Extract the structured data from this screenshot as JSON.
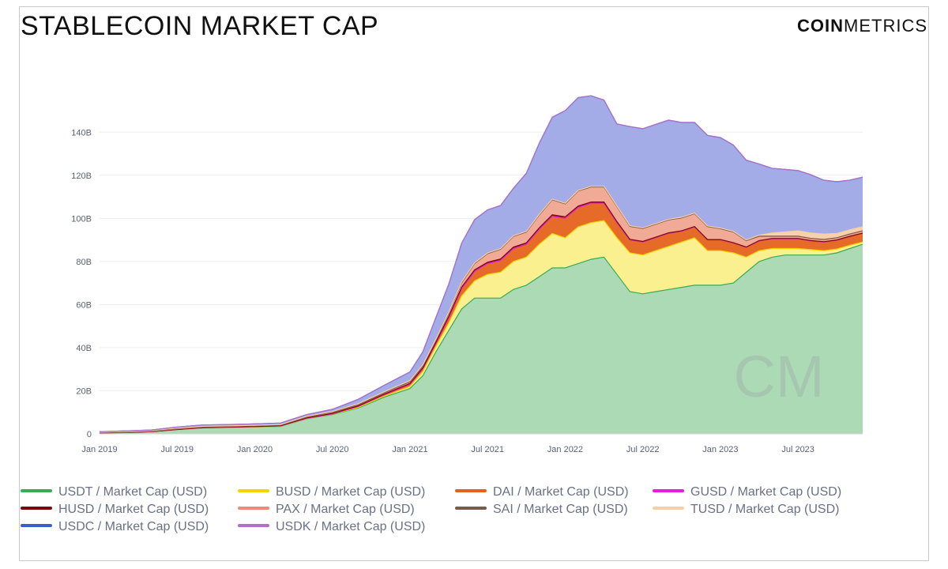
{
  "header": {
    "title": "STABLECOIN MARKET CAP",
    "brand_bold": "COIN",
    "brand_light": "METRICS"
  },
  "watermark": {
    "text": "CM"
  },
  "chart_data": {
    "type": "area",
    "title": "STABLECOIN MARKET CAP",
    "stacked": true,
    "xlabel": "",
    "ylabel": "",
    "x_range": [
      "2019-01",
      "2023-12"
    ],
    "ylim": [
      0,
      155
    ],
    "y_unit": "B",
    "y_ticks": [
      "0",
      "20B",
      "40B",
      "60B",
      "80B",
      "100B",
      "120B",
      "140B"
    ],
    "y_tick_values": [
      0,
      20,
      40,
      60,
      80,
      100,
      120,
      140
    ],
    "x_ticks": [
      "Jan 2019",
      "Jul 2019",
      "Jan 2020",
      "Jul 2020",
      "Jan 2021",
      "Jul 2021",
      "Jan 2022",
      "Jul 2022",
      "Jan 2023",
      "Jul 2023"
    ],
    "x_tick_values": [
      "2019-01",
      "2019-07",
      "2020-01",
      "2020-07",
      "2021-01",
      "2021-07",
      "2022-01",
      "2022-07",
      "2023-01",
      "2023-07"
    ],
    "grid": "horizontal",
    "legend_position": "bottom",
    "x": [
      "2019-01",
      "2019-03",
      "2019-05",
      "2019-07",
      "2019-09",
      "2019-11",
      "2020-01",
      "2020-03",
      "2020-05",
      "2020-07",
      "2020-09",
      "2020-11",
      "2021-01",
      "2021-02",
      "2021-03",
      "2021-04",
      "2021-05",
      "2021-06",
      "2021-07",
      "2021-08",
      "2021-09",
      "2021-10",
      "2021-11",
      "2021-12",
      "2022-01",
      "2022-02",
      "2022-03",
      "2022-04",
      "2022-05",
      "2022-06",
      "2022-07",
      "2022-08",
      "2022-09",
      "2022-10",
      "2022-11",
      "2022-12",
      "2023-01",
      "2023-02",
      "2023-03",
      "2023-04",
      "2023-05",
      "2023-06",
      "2023-07",
      "2023-08",
      "2023-09",
      "2023-10",
      "2023-11",
      "2023-12"
    ],
    "series": [
      {
        "name": "USDT / Market Cap (USD)",
        "color": "#3aaa55",
        "fill": "#a8d8b0",
        "values": [
          0.5,
          0.6,
          1.0,
          2.0,
          2.8,
          3.0,
          3.2,
          3.5,
          7,
          9,
          12,
          17,
          21,
          27,
          38,
          48,
          58,
          63,
          63,
          63,
          67,
          69,
          73,
          77,
          77,
          79,
          81,
          82,
          74,
          66,
          65,
          66,
          67,
          68,
          69,
          69,
          69,
          70,
          75,
          80,
          82,
          83,
          83,
          83,
          83,
          84,
          86,
          88
        ]
      },
      {
        "name": "BUSD / Market Cap (USD)",
        "color": "#f2d500",
        "fill": "#fbef8a",
        "values": [
          0,
          0,
          0,
          0,
          0.02,
          0.03,
          0.05,
          0.1,
          0.1,
          0.15,
          0.3,
          0.5,
          1.0,
          2.0,
          2.5,
          3.5,
          6,
          8,
          11,
          12,
          13,
          13,
          15,
          16,
          14,
          17,
          17,
          17,
          17,
          18,
          18,
          19,
          20,
          21,
          22,
          16,
          16,
          14,
          7,
          5,
          4,
          3,
          3,
          2.5,
          2,
          1.8,
          1.5,
          1
        ]
      },
      {
        "name": "DAI / Market Cap (USD)",
        "color": "#e5621c",
        "fill": "#e5621c",
        "values": [
          0,
          0,
          0,
          0,
          0,
          0,
          0.1,
          0.1,
          0.1,
          0.1,
          0.4,
          0.6,
          1.0,
          1.2,
          1.5,
          2.5,
          3.5,
          4.5,
          5.0,
          5.5,
          6,
          6,
          7,
          8,
          9,
          9,
          9,
          8,
          7,
          6,
          6,
          6,
          6,
          5,
          5,
          5,
          5,
          4.5,
          4.5,
          4.5,
          4.5,
          4.5,
          4.5,
          4,
          4,
          4,
          4,
          4
        ]
      },
      {
        "name": "GUSD / Market Cap (USD)",
        "color": "#e31ee1",
        "fill": "#e31ee1",
        "values": [
          0.01,
          0.01,
          0.01,
          0.01,
          0.01,
          0.01,
          0.01,
          0.01,
          0.01,
          0.01,
          0.01,
          0.01,
          0.01,
          0.01,
          0.01,
          0.01,
          0.01,
          0.01,
          0.05,
          0.05,
          0.05,
          0.05,
          0.05,
          0.05,
          0.1,
          0.1,
          0.1,
          0.1,
          0.1,
          0.1,
          0.1,
          0.1,
          0.1,
          0.1,
          0.1,
          0.1,
          0.1,
          0.1,
          0.1,
          0.1,
          0.1,
          0.1,
          0.1,
          0.1,
          0.1,
          0.1,
          0.1,
          0.1
        ]
      },
      {
        "name": "HUSD / Market Cap (USD)",
        "color": "#7a0a0a",
        "fill": "#7a0a0a",
        "values": [
          0,
          0,
          0,
          0.05,
          0.1,
          0.1,
          0.1,
          0.1,
          0.2,
          0.2,
          0.3,
          0.3,
          0.4,
          0.5,
          0.5,
          0.6,
          0.6,
          0.6,
          0.6,
          0.6,
          0.6,
          0.6,
          0.6,
          0.6,
          0.6,
          0.6,
          0.5,
          0.5,
          0.4,
          0.2,
          0.2,
          0.2,
          0.2,
          0.1,
          0.1,
          0.1,
          0.1,
          0.1,
          0.1,
          0.1,
          0.1,
          0.1,
          0.1,
          0.1,
          0.1,
          0.1,
          0.1,
          0.1
        ]
      },
      {
        "name": "PAX / Market Cap (USD)",
        "color": "#ee8b78",
        "fill": "#f0a590",
        "values": [
          0.1,
          0.2,
          0.2,
          0.3,
          0.3,
          0.3,
          0.3,
          0.3,
          0.4,
          0.5,
          0.5,
          0.6,
          0.8,
          0.9,
          1.0,
          1.5,
          2.0,
          3.0,
          4.0,
          4.5,
          5,
          5,
          6,
          7,
          6,
          7,
          7,
          7,
          7,
          6,
          6,
          6,
          6,
          6,
          6,
          6,
          5,
          5,
          3,
          2,
          1,
          1,
          1,
          1,
          1,
          1,
          1,
          1
        ]
      },
      {
        "name": "SAI / Market Cap (USD)",
        "color": "#7a5a4a",
        "fill": "#7a5a4a",
        "values": [
          0.1,
          0.1,
          0.1,
          0.1,
          0.1,
          0.1,
          0.05,
          0.02,
          0.02,
          0.01,
          0.01,
          0.01,
          0.01,
          0.01,
          0.01,
          0.01,
          0.01,
          0.01,
          0.01,
          0.01,
          0.01,
          0.01,
          0.01,
          0.01,
          0.01,
          0.01,
          0.01,
          0.01,
          0.01,
          0.01,
          0.01,
          0.01,
          0.01,
          0.01,
          0.01,
          0.01,
          0.01,
          0.01,
          0.01,
          0.01,
          0.01,
          0.01,
          0.01,
          0.01,
          0.01,
          0.01,
          0.01,
          0.01
        ]
      },
      {
        "name": "TUSD / Market Cap (USD)",
        "color": "#f8cfa5",
        "fill": "#f8cfa5",
        "values": [
          0.1,
          0.2,
          0.2,
          0.2,
          0.2,
          0.2,
          0.2,
          0.2,
          0.3,
          0.4,
          0.5,
          0.5,
          0.5,
          0.5,
          0.4,
          0.4,
          0.4,
          0.3,
          0.3,
          0.3,
          0.3,
          0.3,
          0.3,
          0.3,
          0.3,
          0.3,
          0.3,
          0.3,
          0.3,
          0.3,
          0.3,
          0.3,
          0.3,
          0.3,
          0.3,
          0.3,
          0.3,
          0.3,
          0.3,
          0.5,
          1.5,
          2,
          2.5,
          2.5,
          2.5,
          2,
          2,
          1.9
        ]
      },
      {
        "name": "USDC / Market Cap (USD)",
        "color": "#3c5fd0",
        "fill": "#9fa8e6",
        "values": [
          0.2,
          0.3,
          0.3,
          0.5,
          0.6,
          0.6,
          0.6,
          0.7,
          0.8,
          1.0,
          2.0,
          3.0,
          4,
          6,
          10,
          13,
          18,
          20,
          20,
          20,
          22,
          27,
          33,
          38,
          43,
          43,
          42,
          40,
          38,
          46,
          46,
          46,
          46,
          44,
          42,
          42,
          42,
          40,
          37,
          33,
          30,
          29,
          28,
          27,
          25,
          24,
          23,
          23
        ]
      },
      {
        "name": "USDK / Market Cap (USD)",
        "color": "#b070c8",
        "fill": "#b070c8",
        "values": [
          0,
          0,
          0,
          0.02,
          0.03,
          0.03,
          0.03,
          0.03,
          0.03,
          0.03,
          0.03,
          0.03,
          0.03,
          0.03,
          0.03,
          0.03,
          0.03,
          0.03,
          0.03,
          0.03,
          0.03,
          0.03,
          0.03,
          0.03,
          0.03,
          0.03,
          0.03,
          0.03,
          0.03,
          0.03,
          0.03,
          0.03,
          0.03,
          0.03,
          0.03,
          0.03,
          0.03,
          0.03,
          0.03,
          0.03,
          0.03,
          0.03,
          0.03,
          0.03,
          0.03,
          0.03,
          0.03,
          0.03
        ]
      }
    ]
  }
}
